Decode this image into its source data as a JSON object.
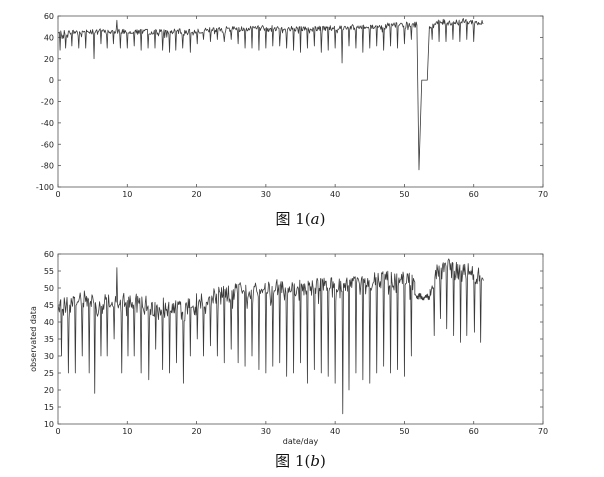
{
  "chart_data": [
    {
      "type": "line",
      "caption_prefix": "图 1(",
      "caption_letter": "a",
      "caption_suffix": ")",
      "xlabel": "",
      "ylabel": "",
      "xlim": [
        0,
        70
      ],
      "ylim": [
        -100,
        60
      ],
      "xticks": [
        0,
        10,
        20,
        30,
        40,
        50,
        60,
        70
      ],
      "yticks": [
        -100,
        -80,
        -60,
        -40,
        -20,
        0,
        20,
        40,
        60
      ],
      "grid": false,
      "line_color": "#3a3a3a",
      "series": [
        {
          "base": [
            [
              0,
              44
            ],
            [
              5,
              46
            ],
            [
              10,
              46
            ],
            [
              15,
              45
            ],
            [
              20,
              46
            ],
            [
              25,
              48
            ],
            [
              30,
              49
            ],
            [
              35,
              48
            ],
            [
              40,
              49
            ],
            [
              45,
              50
            ],
            [
              50,
              52
            ],
            [
              51.8,
              52
            ]
          ],
          "spikes": [
            [
              0.3,
              28
            ],
            [
              1.1,
              30
            ],
            [
              2.0,
              32
            ],
            [
              3.0,
              30
            ],
            [
              4.0,
              30
            ],
            [
              5.2,
              20
            ],
            [
              6.2,
              34
            ],
            [
              7.1,
              30
            ],
            [
              8.0,
              34
            ],
            [
              8.5,
              56
            ],
            [
              9.0,
              30
            ],
            [
              10.0,
              30
            ],
            [
              11.0,
              32
            ],
            [
              12.0,
              28
            ],
            [
              13.0,
              30
            ],
            [
              14.0,
              30
            ],
            [
              15.1,
              28
            ],
            [
              16.1,
              26
            ],
            [
              17.0,
              28
            ],
            [
              18.0,
              30
            ],
            [
              19.1,
              26
            ],
            [
              20.1,
              34
            ],
            [
              21.0,
              38
            ],
            [
              22.0,
              36
            ],
            [
              23.0,
              38
            ],
            [
              24.0,
              36
            ],
            [
              25.0,
              38
            ],
            [
              26.0,
              34
            ],
            [
              27.0,
              30
            ],
            [
              28.0,
              30
            ],
            [
              29.0,
              28
            ],
            [
              30.0,
              30
            ],
            [
              31.0,
              32
            ],
            [
              32.0,
              32
            ],
            [
              33.0,
              30
            ],
            [
              34.0,
              28
            ],
            [
              35.0,
              26
            ],
            [
              36.0,
              30
            ],
            [
              37.0,
              32
            ],
            [
              38.0,
              26
            ],
            [
              39.0,
              28
            ],
            [
              40.0,
              30
            ],
            [
              41.0,
              16
            ],
            [
              42.0,
              32
            ],
            [
              43.0,
              30
            ],
            [
              44.0,
              26
            ],
            [
              45.0,
              30
            ],
            [
              46.0,
              32
            ],
            [
              47.0,
              28
            ],
            [
              48.0,
              32
            ],
            [
              49.0,
              30
            ],
            [
              50.0,
              34
            ],
            [
              51.0,
              38
            ],
            [
              54.0,
              38
            ],
            [
              55.0,
              36
            ],
            [
              56.0,
              36
            ],
            [
              57.0,
              38
            ],
            [
              58.0,
              36
            ],
            [
              59.0,
              38
            ],
            [
              60.0,
              36
            ]
          ],
          "drop": [
            [
              51.8,
              52
            ],
            [
              52.1,
              -84
            ],
            [
              52.5,
              0
            ],
            [
              53.3,
              0
            ],
            [
              53.6,
              50
            ]
          ],
          "tail_base": [
            [
              53.6,
              50
            ],
            [
              55,
              54
            ],
            [
              57,
              54
            ],
            [
              59,
              55
            ],
            [
              60,
              54
            ],
            [
              61.4,
              53
            ]
          ]
        }
      ]
    },
    {
      "type": "line",
      "caption_prefix": "图 1(",
      "caption_letter": "b",
      "caption_suffix": ")",
      "xlabel": "date/day",
      "ylabel": "observated data",
      "xlim": [
        0,
        70
      ],
      "ylim": [
        10,
        60
      ],
      "xticks": [
        0,
        10,
        20,
        30,
        40,
        50,
        60,
        70
      ],
      "yticks": [
        10,
        15,
        20,
        25,
        30,
        35,
        40,
        45,
        50,
        55,
        60
      ],
      "grid": false,
      "line_color": "#3a3a3a",
      "series": [
        {
          "base": [
            [
              0,
              44
            ],
            [
              3,
              47
            ],
            [
              6,
              46
            ],
            [
              10,
              46
            ],
            [
              15,
              45
            ],
            [
              18,
              44
            ],
            [
              20,
              46
            ],
            [
              25,
              49
            ],
            [
              30,
              50
            ],
            [
              35,
              50
            ],
            [
              40,
              51
            ],
            [
              45,
              52
            ],
            [
              50,
              53
            ],
            [
              51.5,
              52
            ]
          ],
          "spikes": [
            [
              0.5,
              30
            ],
            [
              1.5,
              25
            ],
            [
              2.5,
              25
            ],
            [
              3.5,
              30
            ],
            [
              4.5,
              25
            ],
            [
              5.3,
              19
            ],
            [
              6.2,
              30
            ],
            [
              7.1,
              30
            ],
            [
              8.1,
              35
            ],
            [
              8.5,
              56
            ],
            [
              9.2,
              25
            ],
            [
              10.1,
              30
            ],
            [
              11.0,
              30
            ],
            [
              12.0,
              25
            ],
            [
              13.1,
              23
            ],
            [
              14.1,
              32
            ],
            [
              15.1,
              26
            ],
            [
              16.1,
              25
            ],
            [
              17.1,
              28
            ],
            [
              18.1,
              22
            ],
            [
              19.1,
              30
            ],
            [
              20.1,
              35
            ],
            [
              21.0,
              30
            ],
            [
              22.0,
              33
            ],
            [
              23.0,
              30
            ],
            [
              24.0,
              28
            ],
            [
              25.0,
              32
            ],
            [
              26.0,
              28
            ],
            [
              27.0,
              27
            ],
            [
              28.0,
              30
            ],
            [
              29.0,
              26
            ],
            [
              30.0,
              25
            ],
            [
              31.0,
              27
            ],
            [
              32.0,
              28
            ],
            [
              33.0,
              24
            ],
            [
              34.0,
              25
            ],
            [
              35.0,
              28
            ],
            [
              36.0,
              22
            ],
            [
              37.0,
              26
            ],
            [
              38.0,
              25
            ],
            [
              39.0,
              24
            ],
            [
              40.0,
              22
            ],
            [
              41.1,
              13
            ],
            [
              42.0,
              20
            ],
            [
              43.0,
              25
            ],
            [
              44.0,
              23
            ],
            [
              45.0,
              22
            ],
            [
              46.0,
              25
            ],
            [
              47.0,
              27
            ],
            [
              48.0,
              25
            ],
            [
              49.0,
              26
            ],
            [
              50.0,
              24
            ],
            [
              51.0,
              30
            ],
            [
              54.3,
              36
            ],
            [
              55.2,
              41
            ],
            [
              56.1,
              38
            ],
            [
              57.1,
              36
            ],
            [
              58.1,
              34
            ],
            [
              59.0,
              36
            ],
            [
              60.1,
              37
            ],
            [
              61.0,
              34
            ]
          ],
          "noisy_band": [
            51.5,
            53.7,
            46.5,
            48.5
          ],
          "tail_base": [
            [
              53.7,
              49
            ],
            [
              54.5,
              54
            ],
            [
              56,
              56
            ],
            [
              58,
              55
            ],
            [
              60,
              54
            ],
            [
              61.4,
              53
            ]
          ]
        }
      ]
    }
  ]
}
